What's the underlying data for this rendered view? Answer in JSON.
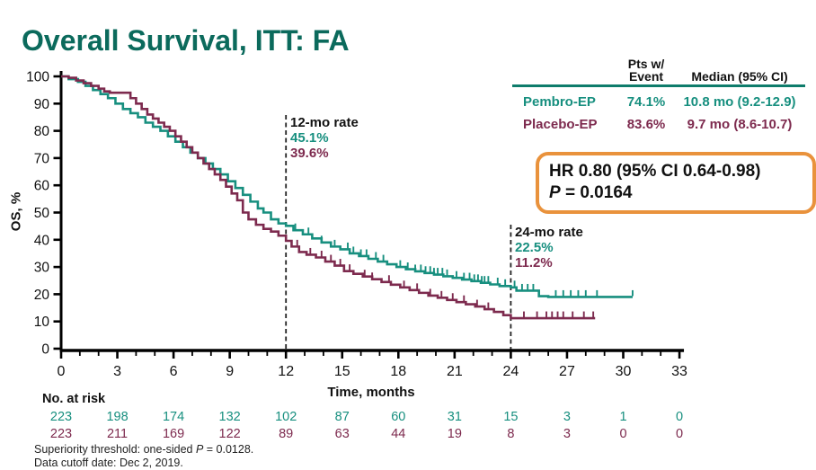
{
  "slide": {
    "title": "Overall Survival, ITT: FA"
  },
  "summary_table": {
    "header_pts_line1": "Pts w/",
    "header_pts_line2": "Event",
    "header_median": "Median (95% CI)",
    "rule_color": "#0e7c6b",
    "rows": [
      {
        "arm": "Pembro-EP",
        "pts_w_event": "74.1%",
        "median": "10.8 mo (9.2-12.9)",
        "color": "#178f7f"
      },
      {
        "arm": "Placebo-EP",
        "pts_w_event": "83.6%",
        "median": "9.7 mo (8.6-10.7)",
        "color": "#7d2a4e"
      }
    ]
  },
  "hr_box": {
    "line1": "HR 0.80 (95% CI 0.64-0.98)",
    "p_label": "P",
    "p_value": " = 0.0164",
    "border_color": "#e9923c"
  },
  "annotations": {
    "rate_12": {
      "title": "12-mo rate",
      "pembro": "45.1%",
      "placebo": "39.6%"
    },
    "rate_24": {
      "title": "24-mo rate",
      "pembro": "22.5%",
      "placebo": "11.2%"
    }
  },
  "risk_table": {
    "label": "No. at risk",
    "rows": [
      {
        "series": "Pembro-EP",
        "color": "#178f7f",
        "values": [
          223,
          198,
          174,
          132,
          102,
          87,
          60,
          31,
          15,
          3,
          1,
          0
        ]
      },
      {
        "series": "Placebo-EP",
        "color": "#7d2a4e",
        "values": [
          223,
          211,
          169,
          122,
          89,
          63,
          44,
          19,
          8,
          3,
          0,
          0
        ]
      }
    ]
  },
  "footnotes": {
    "line1_prefix": "Superiority threshold: one-sided ",
    "line1_italic": "P",
    "line1_rest": " = 0.0128.",
    "line2": "Data cutoff date: Dec 2, 2019."
  },
  "chart_data": {
    "type": "line",
    "subtype": "kaplan-meier-step",
    "title": "Overall Survival, ITT: FA",
    "xlabel": "Time, months",
    "ylabel": "OS, %",
    "xlim": [
      0,
      33
    ],
    "ylim": [
      0,
      100
    ],
    "x_major_ticks": [
      0,
      3,
      6,
      9,
      12,
      15,
      18,
      21,
      24,
      27,
      30,
      33
    ],
    "x_minor_tick_every": 1,
    "y_ticks": [
      0,
      10,
      20,
      30,
      40,
      50,
      60,
      70,
      80,
      90,
      100
    ],
    "grid": false,
    "legend_position": "none",
    "reference_lines_x": [
      12,
      24
    ],
    "series": [
      {
        "name": "Pembro-EP",
        "color": "#178f7f",
        "median_months": 10.8,
        "median_95ci": "9.2-12.9",
        "pts_with_event_pct": 74.1,
        "rate_12mo_pct": 45.1,
        "rate_24mo_pct": 22.5,
        "points": [
          [
            0,
            100
          ],
          [
            0.4,
            99
          ],
          [
            0.9,
            98
          ],
          [
            1.3,
            96.5
          ],
          [
            1.7,
            95
          ],
          [
            2.1,
            93.5
          ],
          [
            2.5,
            92
          ],
          [
            2.9,
            90
          ],
          [
            3.3,
            88
          ],
          [
            3.7,
            86.5
          ],
          [
            4.1,
            85
          ],
          [
            4.5,
            83
          ],
          [
            4.9,
            81.5
          ],
          [
            5.3,
            80
          ],
          [
            5.7,
            78
          ],
          [
            6.1,
            76
          ],
          [
            6.5,
            74
          ],
          [
            6.9,
            72
          ],
          [
            7.3,
            70
          ],
          [
            7.7,
            68
          ],
          [
            8.1,
            66
          ],
          [
            8.5,
            64
          ],
          [
            8.9,
            61.5
          ],
          [
            9.3,
            59
          ],
          [
            9.7,
            56.5
          ],
          [
            10.1,
            54
          ],
          [
            10.5,
            51.5
          ],
          [
            10.8,
            50
          ],
          [
            11.2,
            47.5
          ],
          [
            11.6,
            46
          ],
          [
            12,
            45.1
          ],
          [
            12.4,
            43.5
          ],
          [
            12.9,
            42
          ],
          [
            13.4,
            40.5
          ],
          [
            13.9,
            39
          ],
          [
            14.4,
            37.5
          ],
          [
            14.9,
            36.5
          ],
          [
            15.4,
            35
          ],
          [
            15.9,
            34
          ],
          [
            16.4,
            33
          ],
          [
            16.9,
            32
          ],
          [
            17.4,
            31
          ],
          [
            17.9,
            30
          ],
          [
            18.4,
            29.2
          ],
          [
            18.9,
            28.4
          ],
          [
            19.4,
            27.8
          ],
          [
            19.9,
            27.2
          ],
          [
            20.4,
            26.6
          ],
          [
            20.9,
            26
          ],
          [
            21.4,
            25.4
          ],
          [
            21.9,
            24.8
          ],
          [
            22.4,
            24.2
          ],
          [
            22.9,
            23.6
          ],
          [
            23.4,
            23
          ],
          [
            24,
            22.5
          ],
          [
            24.3,
            21.3
          ],
          [
            25.5,
            19.3
          ],
          [
            26,
            19
          ],
          [
            30.5,
            19
          ]
        ],
        "censor_months": [
          12.5,
          13.2,
          13.9,
          14.6,
          15.3,
          15.6,
          16,
          16.3,
          16.8,
          17.2,
          18.1,
          18.5,
          18.9,
          19.2,
          19.45,
          19.7,
          19.9,
          20.1,
          20.35,
          20.6,
          21.1,
          21.5,
          21.8,
          22.05,
          22.25,
          22.45,
          22.6,
          22.8,
          23.3,
          23.7,
          24.2,
          24.6,
          24.9,
          25.2,
          26.4,
          26.8,
          27.2,
          27.6,
          28,
          28.6,
          30.5
        ]
      },
      {
        "name": "Placebo-EP",
        "color": "#7d2a4e",
        "median_months": 9.7,
        "median_95ci": "8.6-10.7",
        "pts_with_event_pct": 83.6,
        "rate_12mo_pct": 39.6,
        "rate_24mo_pct": 11.2,
        "points": [
          [
            0,
            100
          ],
          [
            0.4,
            99.5
          ],
          [
            0.8,
            98.5
          ],
          [
            1.2,
            97.5
          ],
          [
            1.6,
            96.5
          ],
          [
            2,
            95.5
          ],
          [
            2.3,
            94.5
          ],
          [
            2.6,
            94
          ],
          [
            3.4,
            94
          ],
          [
            3.7,
            92
          ],
          [
            4,
            90
          ],
          [
            4.3,
            88
          ],
          [
            4.6,
            86
          ],
          [
            4.9,
            84.5
          ],
          [
            5.2,
            83
          ],
          [
            5.5,
            81.5
          ],
          [
            5.8,
            80
          ],
          [
            6.1,
            78
          ],
          [
            6.4,
            76
          ],
          [
            6.7,
            74
          ],
          [
            7,
            72
          ],
          [
            7.3,
            70
          ],
          [
            7.6,
            68
          ],
          [
            7.9,
            66
          ],
          [
            8.2,
            64
          ],
          [
            8.5,
            62
          ],
          [
            8.8,
            59.5
          ],
          [
            9.1,
            57
          ],
          [
            9.4,
            54.5
          ],
          [
            9.7,
            50
          ],
          [
            10,
            47.5
          ],
          [
            10.4,
            45.5
          ],
          [
            10.8,
            44
          ],
          [
            11.2,
            43
          ],
          [
            11.6,
            41.5
          ],
          [
            12,
            39.6
          ],
          [
            12.3,
            37.5
          ],
          [
            12.7,
            35.5
          ],
          [
            13.1,
            34.5
          ],
          [
            13.6,
            33.5
          ],
          [
            14.1,
            32
          ],
          [
            14.6,
            30.5
          ],
          [
            15.1,
            28.5
          ],
          [
            15.6,
            27.5
          ],
          [
            16.1,
            26.5
          ],
          [
            16.6,
            25.5
          ],
          [
            17.1,
            24.5
          ],
          [
            17.6,
            23.5
          ],
          [
            18.1,
            22.5
          ],
          [
            18.6,
            21.5
          ],
          [
            19.1,
            20.5
          ],
          [
            19.6,
            19.5
          ],
          [
            20.1,
            18.7
          ],
          [
            20.6,
            17.9
          ],
          [
            21.1,
            17.1
          ],
          [
            21.6,
            16.3
          ],
          [
            22.1,
            15.5
          ],
          [
            22.6,
            14.5
          ],
          [
            23.1,
            13.5
          ],
          [
            23.6,
            12.3
          ],
          [
            24,
            11.2
          ],
          [
            28.5,
            11.2
          ]
        ],
        "censor_months": [
          12.6,
          13.3,
          13.9,
          14.4,
          14.9,
          15.4,
          16.2,
          16.6,
          17.5,
          18.3,
          19,
          19.7,
          20.3,
          20.9,
          21.5,
          22.2,
          22.8,
          24.7,
          25.4,
          25.9,
          26.2,
          26.5,
          26.8,
          27.3,
          27.9,
          28.4
        ]
      }
    ]
  }
}
